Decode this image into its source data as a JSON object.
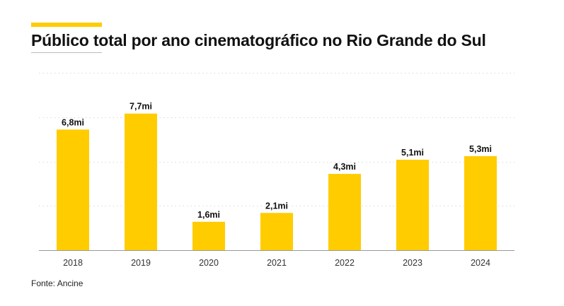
{
  "header": {
    "title": "Público total por ano cinematográfico no Rio Grande do Sul"
  },
  "footer": {
    "source": "Fonte: Ancine"
  },
  "colors": {
    "accent": "#ffcc00",
    "bar": "#ffcc00",
    "grid": "#d9d9d9",
    "axis": "#999999"
  },
  "chart_data": {
    "type": "bar",
    "categories": [
      "2018",
      "2019",
      "2020",
      "2021",
      "2022",
      "2023",
      "2024"
    ],
    "values": [
      6.8,
      7.7,
      1.6,
      2.1,
      4.3,
      5.1,
      5.3
    ],
    "data_labels": [
      "6,8mi",
      "7,7mi",
      "1,6mi",
      "2,1mi",
      "4,3mi",
      "5,1mi",
      "5,3mi"
    ],
    "ylim": [
      0,
      10
    ],
    "grid": true,
    "legend": "none"
  }
}
